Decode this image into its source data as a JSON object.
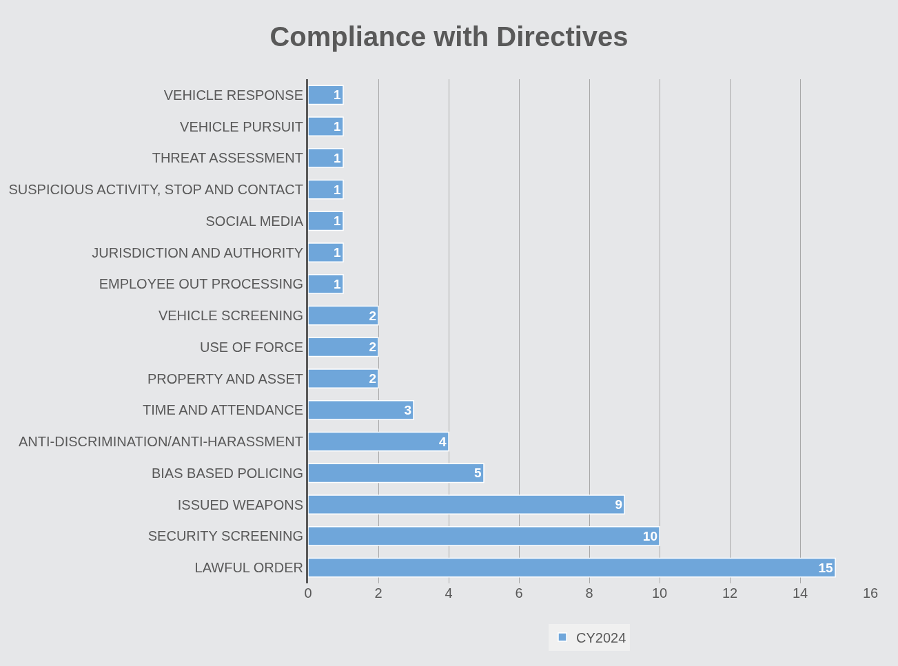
{
  "chart_data": {
    "type": "bar",
    "title": "Compliance with Directives",
    "orientation": "horizontal",
    "categories": [
      "VEHICLE RESPONSE",
      "VEHICLE PURSUIT",
      "THREAT ASSESSMENT",
      "SUSPICIOUS ACTIVITY, STOP AND CONTACT",
      "SOCIAL MEDIA",
      "JURISDICTION AND AUTHORITY",
      "EMPLOYEE OUT PROCESSING",
      "VEHICLE SCREENING",
      "USE OF FORCE",
      "PROPERTY AND ASSET",
      "TIME AND ATTENDANCE",
      "ANTI-DISCRIMINATION/ANTI-HARASSMENT",
      "BIAS BASED POLICING",
      "ISSUED WEAPONS",
      "SECURITY SCREENING",
      "LAWFUL ORDER"
    ],
    "series": [
      {
        "name": "CY2024",
        "color": "#6fa6da",
        "values": [
          1,
          1,
          1,
          1,
          1,
          1,
          1,
          2,
          2,
          2,
          3,
          4,
          5,
          9,
          10,
          15
        ]
      }
    ],
    "xlim": [
      0,
      16
    ],
    "xticks": [
      0,
      2,
      4,
      6,
      8,
      10,
      12,
      14,
      16
    ],
    "grid": "x",
    "legend": "bottom",
    "data_labels": true
  }
}
